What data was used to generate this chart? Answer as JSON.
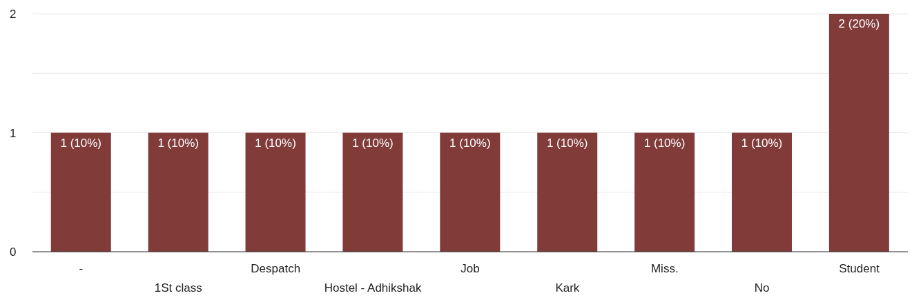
{
  "chart_data": {
    "type": "bar",
    "categories": [
      "-",
      "1St class",
      "Despatch",
      "Hostel - Adhikshak",
      "Job",
      "Kark",
      "Miss.",
      "No",
      "Student"
    ],
    "values": [
      1,
      1,
      1,
      1,
      1,
      1,
      1,
      1,
      2
    ],
    "value_labels": [
      "1 (10%)",
      "1 (10%)",
      "1 (10%)",
      "1 (10%)",
      "1 (10%)",
      "1 (10%)",
      "1 (10%)",
      "1 (10%)",
      "2 (20%)"
    ],
    "color": "#813c3a",
    "ylim": [
      0,
      2
    ],
    "yticks": [
      0,
      {
        "value": 0.5,
        "label": null
      },
      1,
      {
        "value": 1.5,
        "label": null
      },
      2
    ],
    "grid": "y"
  }
}
